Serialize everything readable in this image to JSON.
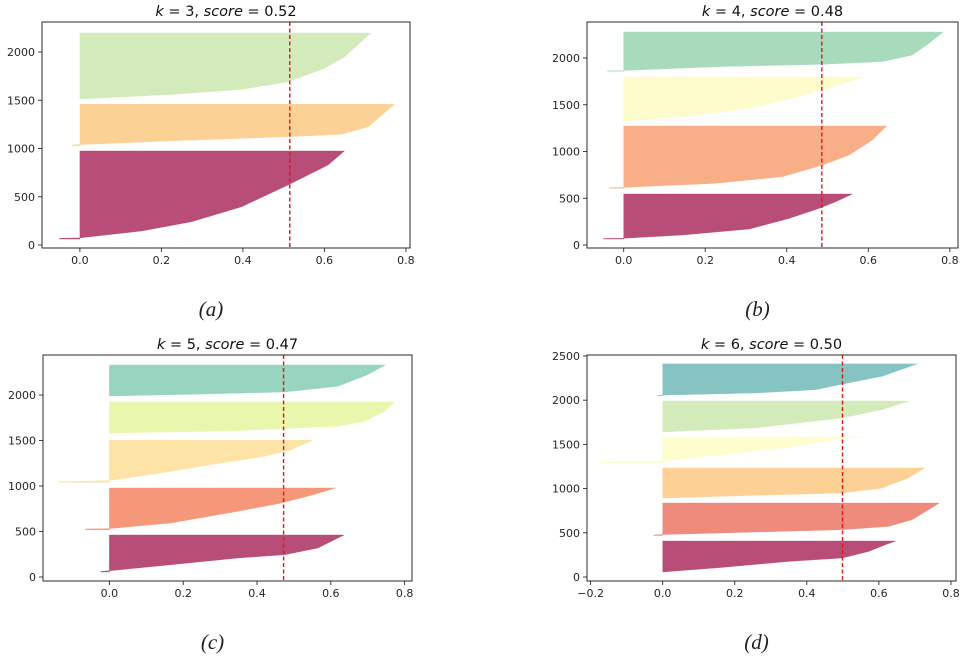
{
  "figure": {
    "background": "#ffffff",
    "panel_count": 4
  },
  "chart_data": [
    {
      "type": "area",
      "subtype": "silhouette-plot",
      "caption": "(a)",
      "title_parts": [
        {
          "text": "k",
          "italic": true
        },
        {
          "text": " = 3, ",
          "italic": false
        },
        {
          "text": "score",
          "italic": true
        },
        {
          "text": " = 0.52",
          "italic": false
        }
      ],
      "k": 3,
      "score": 0.52,
      "avg_silhouette_line": 0.515,
      "score_line_color": "#e8141b",
      "xlabel": "",
      "ylabel": "",
      "grid": false,
      "legend": "none",
      "xlim": [
        -0.093,
        0.81
      ],
      "ylim": [
        -31,
        2311
      ],
      "xticks": [
        {
          "value": 0.0,
          "label": "0.0"
        },
        {
          "value": 0.2,
          "label": "0.2"
        },
        {
          "value": 0.4,
          "label": "0.4"
        },
        {
          "value": 0.6,
          "label": "0.6"
        },
        {
          "value": 0.8,
          "label": "0.8"
        }
      ],
      "yticks": [
        {
          "value": 0,
          "label": "0"
        },
        {
          "value": 500,
          "label": "500"
        },
        {
          "value": 1000,
          "label": "1000"
        },
        {
          "value": 1500,
          "label": "1500"
        },
        {
          "value": 2000,
          "label": "2000"
        }
      ],
      "clusters": [
        {
          "label": "cluster 0",
          "color": "#b84d78",
          "points": [
            [
              -0.05,
              62
            ],
            [
              -0.05,
              70
            ],
            [
              0,
              74
            ],
            [
              0.151,
              145
            ],
            [
              0.274,
              242
            ],
            [
              0.397,
              397
            ],
            [
              0.511,
              622
            ],
            [
              0.609,
              829
            ],
            [
              0.649,
              974
            ]
          ]
        },
        {
          "label": "cluster 1",
          "color": "#fcd195",
          "points": [
            [
              -0.02,
              1030
            ],
            [
              -0.02,
              1036
            ],
            [
              0,
              1040
            ],
            [
              0.233,
              1081
            ],
            [
              0.511,
              1122
            ],
            [
              0.642,
              1147
            ],
            [
              0.708,
              1226
            ],
            [
              0.772,
              1458
            ]
          ]
        },
        {
          "label": "cluster 2",
          "color": "#d3ebbb",
          "points": [
            [
              0,
              1513
            ],
            [
              0.233,
              1562
            ],
            [
              0.397,
              1613
            ],
            [
              0.511,
              1692
            ],
            [
              0.601,
              1831
            ],
            [
              0.65,
              1951
            ],
            [
              0.714,
              2197
            ]
          ]
        }
      ]
    },
    {
      "type": "area",
      "subtype": "silhouette-plot",
      "caption": "(b)",
      "title_parts": [
        {
          "text": "k",
          "italic": true
        },
        {
          "text": " = 4, ",
          "italic": false
        },
        {
          "text": "score",
          "italic": true
        },
        {
          "text": " = 0.48",
          "italic": false
        }
      ],
      "k": 4,
      "score": 0.48,
      "avg_silhouette_line": 0.486,
      "score_line_color": "#e8141b",
      "xlabel": "",
      "ylabel": "",
      "grid": false,
      "legend": "none",
      "xlim": [
        -0.09,
        0.82
      ],
      "ylim": [
        -32,
        2385
      ],
      "xticks": [
        {
          "value": 0.0,
          "label": "0.0"
        },
        {
          "value": 0.2,
          "label": "0.2"
        },
        {
          "value": 0.4,
          "label": "0.4"
        },
        {
          "value": 0.6,
          "label": "0.6"
        },
        {
          "value": 0.8,
          "label": "0.8"
        }
      ],
      "yticks": [
        {
          "value": 0,
          "label": "0"
        },
        {
          "value": 500,
          "label": "500"
        },
        {
          "value": 1000,
          "label": "1000"
        },
        {
          "value": 1500,
          "label": "1500"
        },
        {
          "value": 2000,
          "label": "2000"
        }
      ],
      "clusters": [
        {
          "label": "cluster 0",
          "color": "#b84d78",
          "points": [
            [
              -0.05,
              64
            ],
            [
              -0.05,
              70
            ],
            [
              0,
              72
            ],
            [
              0.144,
              107
            ],
            [
              0.308,
              171
            ],
            [
              0.406,
              285
            ],
            [
              0.479,
              392
            ],
            [
              0.52,
              463
            ],
            [
              0.561,
              545
            ]
          ]
        },
        {
          "label": "cluster 1",
          "color": "#f8ae87",
          "points": [
            [
              -0.035,
              608
            ],
            [
              -0.035,
              613
            ],
            [
              0,
              616
            ],
            [
              0.226,
              660
            ],
            [
              0.389,
              731
            ],
            [
              0.488,
              856
            ],
            [
              0.553,
              963
            ],
            [
              0.61,
              1123
            ],
            [
              0.645,
              1273
            ]
          ]
        },
        {
          "label": "cluster 2",
          "color": "#fefccc",
          "points": [
            [
              0,
              1326
            ],
            [
              0.144,
              1372
            ],
            [
              0.308,
              1462
            ],
            [
              0.43,
              1586
            ],
            [
              0.512,
              1693
            ],
            [
              0.59,
              1797
            ]
          ]
        },
        {
          "label": "cluster 3",
          "color": "#a8dabc",
          "points": [
            [
              -0.04,
              1858
            ],
            [
              -0.04,
              1863
            ],
            [
              0,
              1866
            ],
            [
              0.226,
              1907
            ],
            [
              0.488,
              1933
            ],
            [
              0.635,
              1961
            ],
            [
              0.708,
              2032
            ],
            [
              0.749,
              2157
            ],
            [
              0.784,
              2278
            ]
          ]
        }
      ]
    },
    {
      "type": "area",
      "subtype": "silhouette-plot",
      "caption": "(c)",
      "title_parts": [
        {
          "text": "k",
          "italic": true
        },
        {
          "text": " = 5, ",
          "italic": false
        },
        {
          "text": "score",
          "italic": true
        },
        {
          "text": " = 0.47",
          "italic": false
        }
      ],
      "k": 5,
      "score": 0.47,
      "avg_silhouette_line": 0.472,
      "score_line_color": "#e8141b",
      "xlabel": "",
      "ylabel": "",
      "grid": false,
      "legend": "none",
      "xlim": [
        -0.18,
        0.82
      ],
      "ylim": [
        -44,
        2440
      ],
      "xticks": [
        {
          "value": 0.0,
          "label": "0.0"
        },
        {
          "value": 0.2,
          "label": "0.2"
        },
        {
          "value": 0.4,
          "label": "0.4"
        },
        {
          "value": 0.6,
          "label": "0.6"
        },
        {
          "value": 0.8,
          "label": "0.8"
        }
      ],
      "yticks": [
        {
          "value": 0,
          "label": "0"
        },
        {
          "value": 500,
          "label": "500"
        },
        {
          "value": 1000,
          "label": "1000"
        },
        {
          "value": 1500,
          "label": "1500"
        },
        {
          "value": 2000,
          "label": "2000"
        }
      ],
      "clusters": [
        {
          "label": "cluster 0",
          "color": "#b84d78",
          "points": [
            [
              -0.024,
              55
            ],
            [
              -0.024,
              62
            ],
            [
              0,
              68
            ],
            [
              0.167,
              135
            ],
            [
              0.348,
              209
            ],
            [
              0.475,
              245
            ],
            [
              0.565,
              319
            ],
            [
              0.61,
              410
            ],
            [
              0.636,
              462
            ]
          ]
        },
        {
          "label": "cluster 1",
          "color": "#f5987a",
          "points": [
            [
              -0.065,
              520
            ],
            [
              -0.065,
              527
            ],
            [
              0,
              532
            ],
            [
              0.167,
              593
            ],
            [
              0.348,
              722
            ],
            [
              0.466,
              813
            ],
            [
              0.547,
              898
            ],
            [
              0.613,
              978
            ]
          ]
        },
        {
          "label": "cluster 2",
          "color": "#fde3a6",
          "points": [
            [
              -0.138,
              1040
            ],
            [
              -0.138,
              1046
            ],
            [
              0,
              1060
            ],
            [
              0.167,
              1161
            ],
            [
              0.303,
              1253
            ],
            [
              0.42,
              1326
            ],
            [
              0.493,
              1399
            ],
            [
              0.551,
              1505
            ]
          ]
        },
        {
          "label": "cluster 3",
          "color": "#e9f6ae",
          "points": [
            [
              0,
              1582
            ],
            [
              0.348,
              1608
            ],
            [
              0.619,
              1656
            ],
            [
              0.692,
              1711
            ],
            [
              0.746,
              1821
            ],
            [
              0.773,
              1923
            ]
          ]
        },
        {
          "label": "cluster 4",
          "color": "#98d5c0",
          "points": [
            [
              0,
              1989
            ],
            [
              0.258,
              2011
            ],
            [
              0.475,
              2033
            ],
            [
              0.619,
              2096
            ],
            [
              0.7,
              2223
            ],
            [
              0.748,
              2330
            ]
          ]
        }
      ]
    },
    {
      "type": "area",
      "subtype": "silhouette-plot",
      "caption": "(d)",
      "title_parts": [
        {
          "text": "k",
          "italic": true
        },
        {
          "text": " = 6, ",
          "italic": false
        },
        {
          "text": "score",
          "italic": true
        },
        {
          "text": " = 0.50",
          "italic": false
        }
      ],
      "k": 6,
      "score": 0.5,
      "avg_silhouette_line": 0.499,
      "score_line_color": "#e8141b",
      "xlabel": "",
      "ylabel": "",
      "grid": false,
      "legend": "none",
      "xlim": [
        -0.21,
        0.814
      ],
      "ylim": [
        -45,
        2511
      ],
      "xticks": [
        {
          "value": -0.2,
          "label": "−0.2"
        },
        {
          "value": 0.0,
          "label": "0.0"
        },
        {
          "value": 0.2,
          "label": "0.2"
        },
        {
          "value": 0.4,
          "label": "0.4"
        },
        {
          "value": 0.6,
          "label": "0.6"
        },
        {
          "value": 0.8,
          "label": "0.8"
        }
      ],
      "yticks": [
        {
          "value": 0,
          "label": "0"
        },
        {
          "value": 500,
          "label": "500"
        },
        {
          "value": 1000,
          "label": "1000"
        },
        {
          "value": 1500,
          "label": "1500"
        },
        {
          "value": 2000,
          "label": "2000"
        },
        {
          "value": 2500,
          "label": "2500"
        }
      ],
      "clusters": [
        {
          "label": "cluster 0",
          "color": "#b84d78",
          "points": [
            [
              0,
              57
            ],
            [
              0.165,
              109
            ],
            [
              0.35,
              177
            ],
            [
              0.498,
              215
            ],
            [
              0.572,
              290
            ],
            [
              0.618,
              366
            ],
            [
              0.647,
              407
            ]
          ]
        },
        {
          "label": "cluster 1",
          "color": "#ef8b7c",
          "points": [
            [
              -0.025,
              470
            ],
            [
              -0.025,
              476
            ],
            [
              0,
              480
            ],
            [
              0.258,
              509
            ],
            [
              0.498,
              535
            ],
            [
              0.627,
              573
            ],
            [
              0.692,
              648
            ],
            [
              0.738,
              761
            ],
            [
              0.768,
              837
            ]
          ]
        },
        {
          "label": "cluster 2",
          "color": "#fdd196",
          "points": [
            [
              0,
              894
            ],
            [
              0.258,
              924
            ],
            [
              0.498,
              950
            ],
            [
              0.609,
              1007
            ],
            [
              0.682,
              1120
            ],
            [
              0.727,
              1233
            ]
          ]
        },
        {
          "label": "cluster 3",
          "color": "#fefdcd",
          "points": [
            [
              -0.169,
              1292
            ],
            [
              -0.169,
              1300
            ],
            [
              0,
              1310
            ],
            [
              0.165,
              1384
            ],
            [
              0.35,
              1467
            ],
            [
              0.47,
              1553
            ],
            [
              0.554,
              1584
            ]
          ]
        },
        {
          "label": "cluster 4",
          "color": "#d3ebbb",
          "points": [
            [
              0,
              1640
            ],
            [
              0.258,
              1686
            ],
            [
              0.498,
              1799
            ],
            [
              0.609,
              1893
            ],
            [
              0.684,
              1991
            ]
          ]
        },
        {
          "label": "cluster 5",
          "color": "#86c4c4",
          "points": [
            [
              -0.014,
              2048
            ],
            [
              -0.014,
              2053
            ],
            [
              0,
              2058
            ],
            [
              0.258,
              2081
            ],
            [
              0.424,
              2119
            ],
            [
              0.516,
              2195
            ],
            [
              0.609,
              2270
            ],
            [
              0.706,
              2410
            ]
          ]
        }
      ]
    }
  ]
}
